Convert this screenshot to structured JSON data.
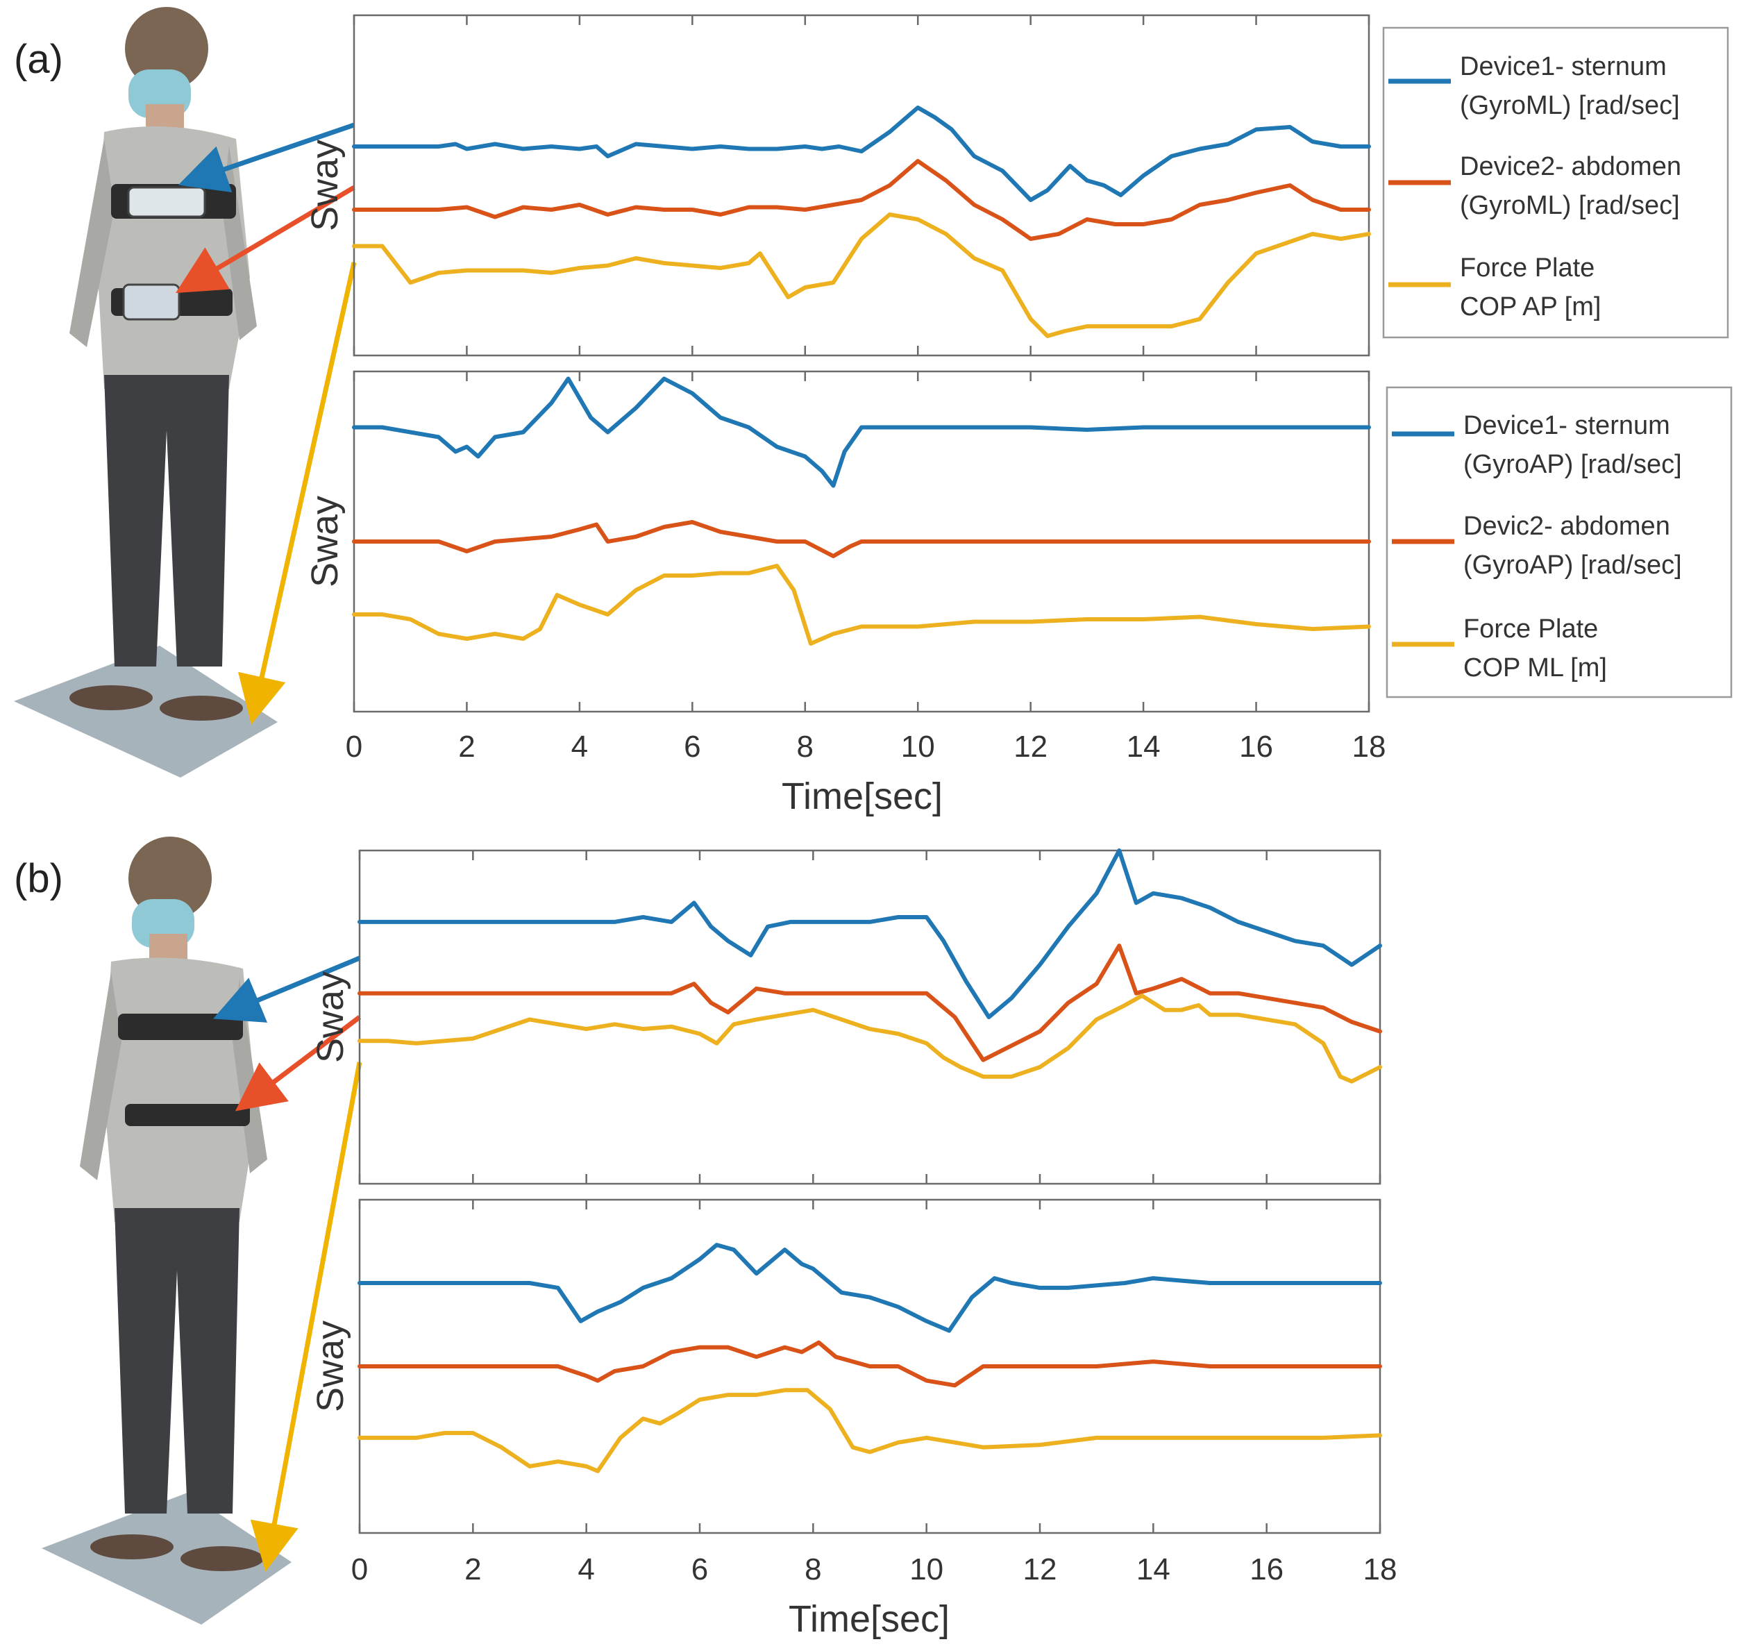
{
  "colors": {
    "blue": "#1f77b4",
    "red": "#d95319",
    "yellow": "#edb120",
    "frame": "#6a6a6a",
    "text": "#333333"
  },
  "chart_data": [
    {
      "panel_label": "(a)",
      "type": "line",
      "subplot": "ML",
      "ylabel": "Sway",
      "xlim": [
        0,
        18
      ],
      "xticks": [
        "0",
        "2",
        "4",
        "6",
        "8",
        "10",
        "12",
        "14",
        "16",
        "18"
      ],
      "xlabel": "",
      "legend_placement": "right",
      "series": [
        {
          "name_line1": "Device1- sternum",
          "name_line2": "(GyroML) [rad/sec]",
          "color": "blue",
          "x": [
            0,
            0.5,
            1,
            1.5,
            1.8,
            2,
            2.5,
            3,
            3.5,
            4,
            4.3,
            4.5,
            5,
            5.5,
            6,
            6.5,
            7,
            7.5,
            8,
            8.3,
            8.6,
            9,
            9.5,
            10,
            10.3,
            10.6,
            11,
            11.5,
            12,
            12.3,
            12.7,
            13,
            13.3,
            13.6,
            14,
            14.5,
            15,
            15.5,
            16,
            16.6,
            17,
            17.5,
            18
          ],
          "y": [
            0.06,
            0.06,
            0.06,
            0.06,
            0.07,
            0.05,
            0.07,
            0.05,
            0.06,
            0.05,
            0.06,
            0.02,
            0.07,
            0.06,
            0.05,
            0.06,
            0.05,
            0.05,
            0.06,
            0.05,
            0.06,
            0.04,
            0.12,
            0.22,
            0.18,
            0.13,
            0.02,
            -0.04,
            -0.16,
            -0.12,
            -0.02,
            -0.08,
            -0.1,
            -0.14,
            -0.06,
            0.02,
            0.05,
            0.07,
            0.13,
            0.14,
            0.08,
            0.06,
            0.06
          ]
        },
        {
          "name_line1": "Device2- abdomen",
          "name_line2": "(GyroML) [rad/sec]",
          "color": "red",
          "x": [
            0,
            0.5,
            1,
            1.5,
            2,
            2.5,
            3,
            3.5,
            4,
            4.5,
            5,
            5.5,
            6,
            6.5,
            7,
            7.5,
            8,
            8.5,
            9,
            9.5,
            10,
            10.5,
            11,
            11.5,
            12,
            12.5,
            13,
            13.5,
            14,
            14.5,
            15,
            15.5,
            16,
            16.6,
            17,
            17.5,
            18
          ],
          "y": [
            0,
            0,
            0,
            0,
            0.01,
            -0.03,
            0.01,
            0,
            0.02,
            -0.02,
            0.01,
            0,
            0,
            -0.02,
            0.01,
            0.01,
            0,
            0.02,
            0.04,
            0.1,
            0.2,
            0.12,
            0.02,
            -0.04,
            -0.12,
            -0.1,
            -0.04,
            -0.06,
            -0.06,
            -0.04,
            0.02,
            0.04,
            0.07,
            0.1,
            0.04,
            0,
            0
          ]
        },
        {
          "name_line1": "Force Plate",
          "name_line2": "COP AP [m]",
          "color": "yellow",
          "x": [
            0,
            0.5,
            1,
            1.5,
            2,
            2.5,
            3,
            3.5,
            4,
            4.5,
            5,
            5.5,
            6,
            6.5,
            7,
            7.2,
            7.7,
            8,
            8.5,
            9,
            9.5,
            10,
            10.5,
            11,
            11.5,
            12,
            12.3,
            12.6,
            13,
            13.5,
            14,
            14.5,
            15,
            15.5,
            16,
            17,
            17.5,
            18
          ],
          "y": [
            0.35,
            0.35,
            0.2,
            0.24,
            0.25,
            0.25,
            0.25,
            0.24,
            0.26,
            0.27,
            0.3,
            0.28,
            0.27,
            0.26,
            0.28,
            0.32,
            0.14,
            0.18,
            0.2,
            0.38,
            0.48,
            0.46,
            0.4,
            0.3,
            0.25,
            0.05,
            -0.02,
            0,
            0.02,
            0.02,
            0.02,
            0.02,
            0.05,
            0.2,
            0.32,
            0.4,
            0.38,
            0.4
          ]
        }
      ]
    },
    {
      "type": "line",
      "subplot": "AP",
      "ylabel": "Sway",
      "xlim": [
        0,
        18
      ],
      "xticks": [
        "0",
        "2",
        "4",
        "6",
        "8",
        "10",
        "12",
        "14",
        "16",
        "18"
      ],
      "xlabel": "Time[sec]",
      "legend_placement": "right",
      "series": [
        {
          "name_line1": "Device1- sternum",
          "name_line2": "(GyroAP) [rad/sec]",
          "color": "blue",
          "x": [
            0,
            0.5,
            1,
            1.5,
            1.8,
            2,
            2.2,
            2.5,
            3,
            3.5,
            3.8,
            4.2,
            4.5,
            5,
            5.5,
            6,
            6.5,
            7,
            7.5,
            8,
            8.3,
            8.5,
            8.7,
            9,
            9.5,
            10,
            11,
            12,
            13,
            14,
            15,
            16,
            17,
            18
          ],
          "y": [
            0.22,
            0.22,
            0.2,
            0.18,
            0.12,
            0.14,
            0.1,
            0.18,
            0.2,
            0.32,
            0.42,
            0.26,
            0.2,
            0.3,
            0.42,
            0.36,
            0.26,
            0.22,
            0.14,
            0.1,
            0.04,
            -0.02,
            0.12,
            0.22,
            0.22,
            0.22,
            0.22,
            0.22,
            0.21,
            0.22,
            0.22,
            0.22,
            0.22,
            0.22
          ]
        },
        {
          "name_line1": "Devic2- abdomen",
          "name_line2": "(GyroAP) [rad/sec]",
          "color": "red",
          "x": [
            0,
            0.5,
            1,
            1.5,
            2,
            2.5,
            3,
            3.5,
            4,
            4.3,
            4.5,
            5,
            5.5,
            6,
            6.5,
            7,
            7.5,
            8,
            8.5,
            8.8,
            9,
            10,
            11,
            12,
            13,
            14,
            15,
            16,
            17,
            18
          ],
          "y": [
            0,
            0,
            0,
            0,
            -0.04,
            0,
            0.01,
            0.02,
            0.05,
            0.07,
            0,
            0.02,
            0.06,
            0.08,
            0.04,
            0.02,
            0,
            0,
            -0.06,
            -0.02,
            0,
            0,
            0,
            0,
            0,
            0,
            0,
            0,
            0,
            0
          ]
        },
        {
          "name_line1": "Force Plate",
          "name_line2": "COP ML [m]",
          "color": "yellow",
          "x": [
            0,
            0.5,
            1,
            1.5,
            2,
            2.5,
            3,
            3.3,
            3.6,
            4,
            4.5,
            5,
            5.5,
            6,
            6.5,
            7,
            7.5,
            7.8,
            8.1,
            8.5,
            9,
            10,
            11,
            12,
            13,
            14,
            15,
            16,
            17,
            18
          ],
          "y": [
            -0.3,
            -0.3,
            -0.32,
            -0.38,
            -0.4,
            -0.38,
            -0.4,
            -0.36,
            -0.22,
            -0.26,
            -0.3,
            -0.2,
            -0.14,
            -0.14,
            -0.13,
            -0.13,
            -0.1,
            -0.2,
            -0.42,
            -0.38,
            -0.35,
            -0.35,
            -0.33,
            -0.33,
            -0.32,
            -0.32,
            -0.31,
            -0.34,
            -0.36,
            -0.35
          ]
        }
      ]
    },
    {
      "panel_label": "(b)",
      "type": "line",
      "subplot": "ML",
      "ylabel": "Sway",
      "xlim": [
        0,
        18
      ],
      "xticks": [],
      "xlabel": "",
      "series": [
        {
          "color": "blue",
          "x": [
            0,
            0.5,
            1,
            1.5,
            2,
            2.5,
            3,
            3.5,
            4,
            4.5,
            5,
            5.5,
            5.9,
            6.2,
            6.5,
            6.9,
            7.2,
            7.6,
            8,
            8.5,
            9,
            9.5,
            10,
            10.3,
            10.7,
            11.1,
            11.5,
            12,
            12.5,
            13,
            13.4,
            13.7,
            14,
            14.5,
            15,
            15.5,
            16,
            16.5,
            17,
            17.5,
            18
          ],
          "y": [
            0.3,
            0.3,
            0.3,
            0.3,
            0.3,
            0.3,
            0.3,
            0.3,
            0.3,
            0.3,
            0.32,
            0.3,
            0.38,
            0.28,
            0.22,
            0.16,
            0.28,
            0.3,
            0.3,
            0.3,
            0.3,
            0.32,
            0.32,
            0.22,
            0.05,
            -0.1,
            -0.02,
            0.12,
            0.28,
            0.42,
            0.6,
            0.38,
            0.42,
            0.4,
            0.36,
            0.3,
            0.26,
            0.22,
            0.2,
            0.12,
            0.2
          ]
        },
        {
          "color": "red",
          "x": [
            0,
            0.5,
            1,
            1.5,
            2,
            2.5,
            3,
            3.5,
            4,
            4.5,
            5,
            5.5,
            5.9,
            6.2,
            6.5,
            7,
            7.5,
            8,
            8.5,
            9,
            9.5,
            10,
            10.5,
            11,
            11.5,
            12,
            12.5,
            13,
            13.4,
            13.7,
            14,
            14.5,
            15,
            15.5,
            16,
            16.5,
            17,
            17.5,
            18
          ],
          "y": [
            0.1,
            0.1,
            0.1,
            0.1,
            0.1,
            0.1,
            0.1,
            0.1,
            0.1,
            0.1,
            0.1,
            0.1,
            0.14,
            0.06,
            0.02,
            0.12,
            0.1,
            0.1,
            0.1,
            0.1,
            0.1,
            0.1,
            0,
            -0.18,
            -0.12,
            -0.06,
            0.06,
            0.14,
            0.3,
            0.1,
            0.12,
            0.16,
            0.1,
            0.1,
            0.08,
            0.06,
            0.04,
            -0.02,
            -0.06
          ]
        },
        {
          "color": "yellow",
          "x": [
            0,
            0.5,
            1,
            1.5,
            2,
            2.5,
            3,
            3.5,
            4,
            4.5,
            5,
            5.5,
            6,
            6.3,
            6.6,
            7,
            7.5,
            8,
            8.5,
            9,
            9.5,
            10,
            10.3,
            10.6,
            11,
            11.5,
            12,
            12.5,
            13,
            13.5,
            13.8,
            14.2,
            14.5,
            14.8,
            15,
            15.5,
            16,
            16.5,
            17,
            17.3,
            17.5,
            18
          ],
          "y": [
            -0.05,
            -0.05,
            -0.06,
            -0.05,
            -0.04,
            0,
            0.04,
            0.02,
            0,
            0.02,
            0,
            0.01,
            -0.02,
            -0.06,
            0.02,
            0.04,
            0.06,
            0.08,
            0.04,
            0,
            -0.02,
            -0.06,
            -0.12,
            -0.16,
            -0.2,
            -0.2,
            -0.16,
            -0.08,
            0.04,
            0.1,
            0.14,
            0.08,
            0.08,
            0.1,
            0.06,
            0.06,
            0.04,
            0.02,
            -0.06,
            -0.2,
            -0.22,
            -0.16
          ]
        }
      ]
    },
    {
      "type": "line",
      "subplot": "AP",
      "ylabel": "Sway",
      "xlim": [
        0,
        18
      ],
      "xticks": [
        "0",
        "2",
        "4",
        "6",
        "8",
        "10",
        "12",
        "14",
        "16",
        "18"
      ],
      "xlabel": "Time[sec]",
      "series": [
        {
          "color": "blue",
          "x": [
            0,
            0.5,
            1,
            1.5,
            2,
            2.5,
            3,
            3.5,
            3.9,
            4.2,
            4.6,
            5,
            5.5,
            6,
            6.3,
            6.6,
            7,
            7.2,
            7.5,
            7.8,
            8,
            8.5,
            9,
            9.5,
            10,
            10.4,
            10.8,
            11.2,
            11.5,
            12,
            12.5,
            13,
            13.5,
            14,
            14.5,
            15,
            15.5,
            16,
            17,
            18
          ],
          "y": [
            0.2,
            0.2,
            0.2,
            0.2,
            0.2,
            0.2,
            0.2,
            0.18,
            0.04,
            0.08,
            0.12,
            0.18,
            0.22,
            0.3,
            0.36,
            0.34,
            0.24,
            0.28,
            0.34,
            0.28,
            0.26,
            0.16,
            0.14,
            0.1,
            0.04,
            0.0,
            0.14,
            0.22,
            0.2,
            0.18,
            0.18,
            0.19,
            0.2,
            0.22,
            0.21,
            0.2,
            0.2,
            0.2,
            0.2,
            0.2
          ]
        },
        {
          "color": "red",
          "x": [
            0,
            0.5,
            1,
            1.5,
            2,
            2.5,
            3,
            3.5,
            4,
            4.2,
            4.5,
            5,
            5.5,
            6,
            6.5,
            7,
            7.5,
            7.8,
            8.1,
            8.4,
            9,
            9.5,
            10,
            10.5,
            11,
            12,
            13,
            14,
            15,
            16,
            17,
            18
          ],
          "y": [
            0,
            0,
            0,
            0,
            0,
            0,
            0,
            0,
            -0.04,
            -0.06,
            -0.02,
            0,
            0.06,
            0.08,
            0.08,
            0.04,
            0.08,
            0.06,
            0.1,
            0.04,
            0,
            0,
            -0.06,
            -0.08,
            0,
            0,
            0,
            0.02,
            0,
            0,
            0,
            0
          ]
        },
        {
          "color": "yellow",
          "x": [
            0,
            0.5,
            1,
            1.5,
            2,
            2.5,
            3,
            3.5,
            4,
            4.2,
            4.6,
            5,
            5.3,
            5.6,
            6,
            6.5,
            7,
            7.5,
            7.9,
            8.3,
            8.7,
            9,
            9.5,
            10,
            10.5,
            11,
            12,
            13,
            14,
            15,
            16,
            17,
            18
          ],
          "y": [
            -0.3,
            -0.3,
            -0.3,
            -0.28,
            -0.28,
            -0.34,
            -0.42,
            -0.4,
            -0.42,
            -0.44,
            -0.3,
            -0.22,
            -0.24,
            -0.2,
            -0.14,
            -0.12,
            -0.12,
            -0.1,
            -0.1,
            -0.18,
            -0.34,
            -0.36,
            -0.32,
            -0.3,
            -0.32,
            -0.34,
            -0.33,
            -0.3,
            -0.3,
            -0.3,
            -0.3,
            -0.3,
            -0.29
          ]
        }
      ]
    }
  ]
}
